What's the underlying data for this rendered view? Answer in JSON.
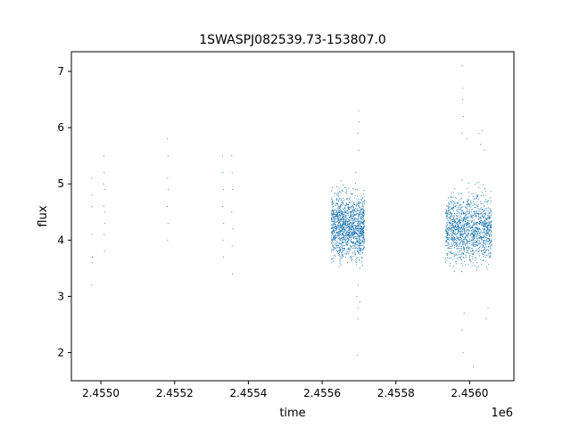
{
  "chart_data": {
    "type": "scatter",
    "title": "1SWASPJ082539.73-153807.0",
    "xlabel": "time",
    "ylabel": "flux",
    "x_offset_label": "1e6",
    "xlim": [
      2454870,
      2456070
    ],
    "ylim": [
      1.5,
      7.35
    ],
    "x_ticks": [
      2454950,
      2455150,
      2455350,
      2455550,
      2455750,
      2455950
    ],
    "x_tick_labels": [
      "2.4550",
      "2.4552",
      "2.4554",
      "2.4556",
      "2.4558",
      "2.4560"
    ],
    "y_ticks": [
      2,
      3,
      4,
      5,
      6,
      7
    ],
    "y_tick_labels": [
      "2",
      "3",
      "4",
      "5",
      "6",
      "7"
    ],
    "grid": false,
    "legend": "none",
    "point_color": "#1f77b4",
    "series": [
      {
        "values": [
          [
            2454925,
            5.1
          ],
          [
            2454925,
            4.6
          ],
          [
            2454926,
            4.1
          ],
          [
            2454926,
            3.6
          ],
          [
            2454925,
            3.2
          ],
          [
            2454927,
            3.7
          ],
          [
            2454926,
            4.8
          ],
          [
            2454958,
            5.5
          ],
          [
            2454959,
            5.2
          ],
          [
            2454960,
            4.9
          ],
          [
            2454958,
            4.6
          ],
          [
            2454961,
            4.3
          ],
          [
            2454959,
            4.1
          ],
          [
            2454960,
            3.8
          ],
          [
            2454957,
            5.0
          ],
          [
            2454961,
            4.5
          ],
          [
            2455130,
            5.8
          ],
          [
            2455132,
            5.5
          ],
          [
            2455131,
            5.1
          ],
          [
            2455133,
            4.9
          ],
          [
            2455130,
            4.6
          ],
          [
            2455132,
            4.3
          ],
          [
            2455131,
            4.0
          ],
          [
            2455280,
            5.5
          ],
          [
            2455281,
            5.2
          ],
          [
            2455282,
            4.9
          ],
          [
            2455280,
            4.6
          ],
          [
            2455283,
            4.3
          ],
          [
            2455281,
            4.0
          ],
          [
            2455282,
            3.7
          ],
          [
            2455305,
            5.5
          ],
          [
            2455306,
            5.2
          ],
          [
            2455307,
            4.9
          ],
          [
            2455305,
            4.5
          ],
          [
            2455308,
            4.2
          ],
          [
            2455306,
            3.9
          ],
          [
            2455307,
            3.4
          ],
          [
            2455640,
            4.9
          ],
          [
            2455650,
            3.9
          ],
          [
            2455644,
            3.0
          ],
          [
            2455630,
            4.6
          ],
          [
            2455652,
            2.9
          ],
          [
            2455645,
            1.95
          ],
          [
            2455641,
            5.2
          ],
          [
            2455648,
            3.2
          ],
          [
            2455650,
            5.6
          ],
          [
            2455649,
            6.3
          ],
          [
            2455647,
            2.6
          ],
          [
            2455648,
            2.8
          ],
          [
            2455650,
            6.1
          ],
          [
            2455648,
            5.9
          ],
          [
            2455646,
            4.2
          ],
          [
            2455652,
            3.5
          ],
          [
            2455930,
            7.1
          ],
          [
            2455932,
            6.7
          ],
          [
            2455931,
            6.5
          ],
          [
            2455933,
            6.2
          ],
          [
            2455930,
            5.9
          ],
          [
            2455929,
            2.4
          ],
          [
            2455932,
            2.0
          ],
          [
            2455935,
            2.7
          ],
          [
            2455960,
            1.75
          ],
          [
            2455942,
            5.8
          ],
          [
            2455975,
            5.9
          ],
          [
            2455985,
            5.95
          ],
          [
            2455980,
            5.7
          ],
          [
            2455990,
            5.6
          ],
          [
            2456000,
            2.8
          ],
          [
            2455995,
            2.6
          ]
        ]
      }
    ],
    "dense_clusters": [
      {
        "x_range": [
          2455575,
          2455665
        ],
        "y_range": [
          3.3,
          5.2
        ]
      },
      {
        "x_range": [
          2455885,
          2456010
        ],
        "y_range": [
          3.2,
          5.2
        ]
      }
    ]
  }
}
